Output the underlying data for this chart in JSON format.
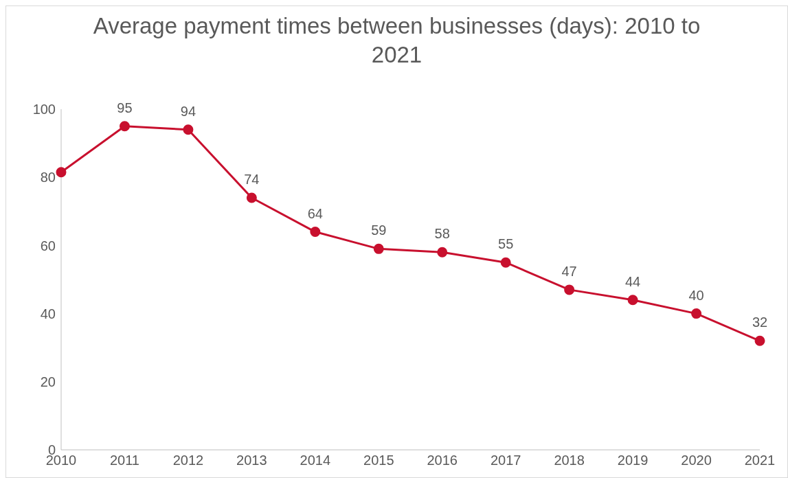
{
  "chart_data": {
    "type": "line",
    "title": "Average payment times between businesses (days): 2010 to 2021",
    "categories": [
      "2010",
      "2011",
      "2012",
      "2013",
      "2014",
      "2015",
      "2016",
      "2017",
      "2018",
      "2019",
      "2020",
      "2021"
    ],
    "series": [
      {
        "color": "#c8102e",
        "values": [
          81.5,
          95,
          94,
          74,
          64,
          59,
          58,
          55,
          47,
          44,
          40,
          32
        ],
        "value_labels": [
          null,
          "95",
          "94",
          "74",
          "64",
          "59",
          "58",
          "55",
          "47",
          "44",
          "40",
          "32"
        ]
      }
    ],
    "ylim": [
      0,
      100
    ],
    "yticks": [
      0,
      20,
      40,
      60,
      80,
      100
    ],
    "grid": false,
    "legend": false,
    "marker": "circle",
    "line_style": "solid"
  }
}
